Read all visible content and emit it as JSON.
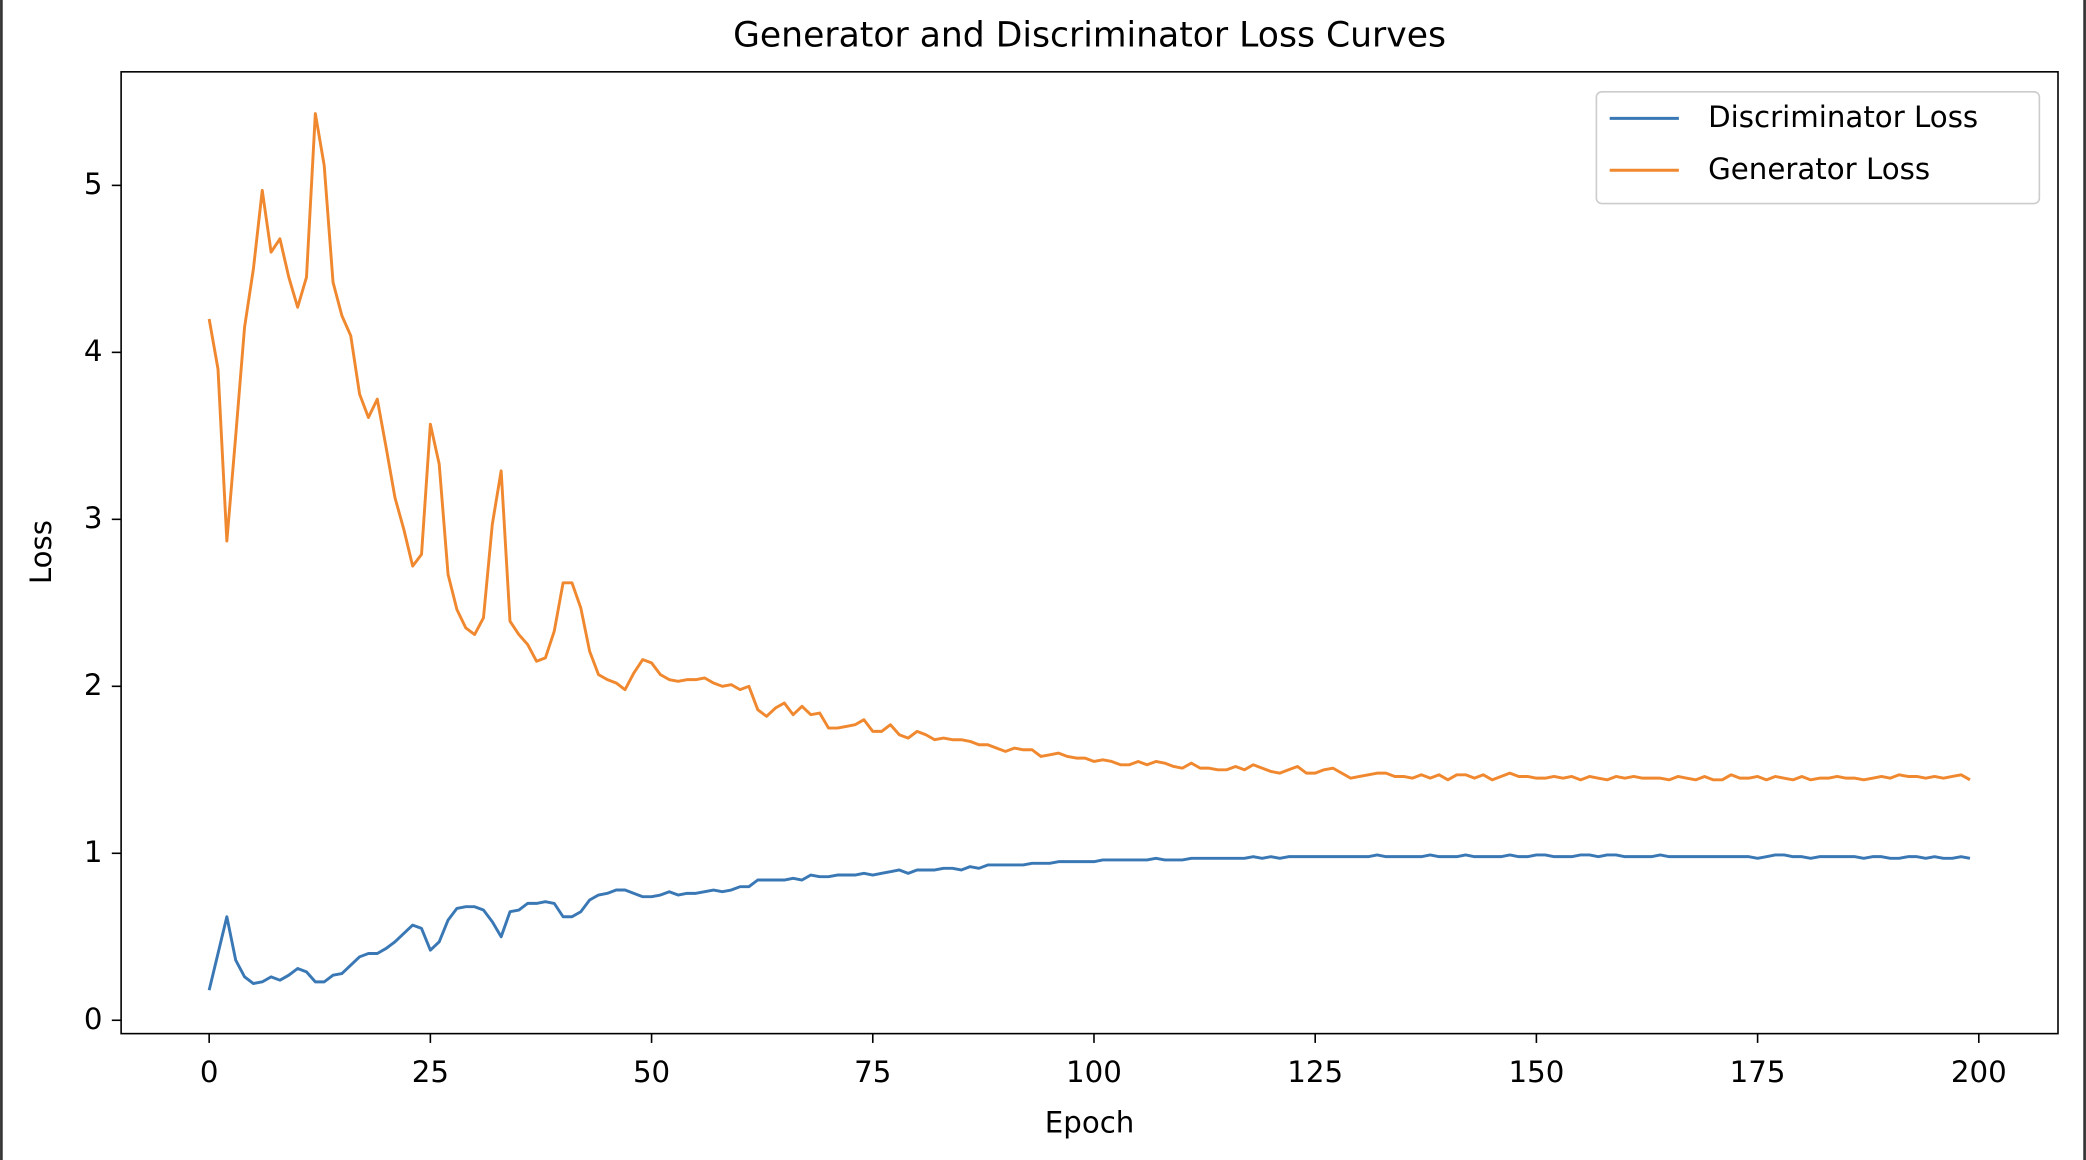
{
  "chart_data": {
    "type": "line",
    "title": "Generator and Discriminator Loss Curves",
    "x_label": "Epoch",
    "y_label": "Loss",
    "x": [
      0,
      1,
      2,
      3,
      4,
      5,
      6,
      7,
      8,
      9,
      10,
      11,
      12,
      13,
      14,
      15,
      16,
      17,
      18,
      19,
      20,
      21,
      22,
      23,
      24,
      25,
      26,
      27,
      28,
      29,
      30,
      31,
      32,
      33,
      34,
      35,
      36,
      37,
      38,
      39,
      40,
      41,
      42,
      43,
      44,
      45,
      46,
      47,
      48,
      49,
      50,
      51,
      52,
      53,
      54,
      55,
      56,
      57,
      58,
      59,
      60,
      61,
      62,
      63,
      64,
      65,
      66,
      67,
      68,
      69,
      70,
      71,
      72,
      73,
      74,
      75,
      76,
      77,
      78,
      79,
      80,
      81,
      82,
      83,
      84,
      85,
      86,
      87,
      88,
      89,
      90,
      91,
      92,
      93,
      94,
      95,
      96,
      97,
      98,
      99,
      100,
      101,
      102,
      103,
      104,
      105,
      106,
      107,
      108,
      109,
      110,
      111,
      112,
      113,
      114,
      115,
      116,
      117,
      118,
      119,
      120,
      121,
      122,
      123,
      124,
      125,
      126,
      127,
      128,
      129,
      130,
      131,
      132,
      133,
      134,
      135,
      136,
      137,
      138,
      139,
      140,
      141,
      142,
      143,
      144,
      145,
      146,
      147,
      148,
      149,
      150,
      151,
      152,
      153,
      154,
      155,
      156,
      157,
      158,
      159,
      160,
      161,
      162,
      163,
      164,
      165,
      166,
      167,
      168,
      169,
      170,
      171,
      172,
      173,
      174,
      175,
      176,
      177,
      178,
      179,
      180,
      181,
      182,
      183,
      184,
      185,
      186,
      187,
      188,
      189,
      190,
      191,
      192,
      193,
      194,
      195,
      196,
      197,
      198,
      199
    ],
    "series": [
      {
        "name": "Discriminator Loss",
        "color": "#3a78b5",
        "values": [
          0.18,
          0.4,
          0.62,
          0.36,
          0.26,
          0.22,
          0.23,
          0.26,
          0.24,
          0.27,
          0.31,
          0.29,
          0.23,
          0.23,
          0.27,
          0.28,
          0.33,
          0.38,
          0.4,
          0.4,
          0.43,
          0.47,
          0.52,
          0.57,
          0.55,
          0.42,
          0.47,
          0.6,
          0.67,
          0.68,
          0.68,
          0.66,
          0.59,
          0.5,
          0.65,
          0.66,
          0.7,
          0.7,
          0.71,
          0.7,
          0.62,
          0.62,
          0.65,
          0.72,
          0.75,
          0.76,
          0.78,
          0.78,
          0.76,
          0.74,
          0.74,
          0.75,
          0.77,
          0.75,
          0.76,
          0.76,
          0.77,
          0.78,
          0.77,
          0.78,
          0.8,
          0.8,
          0.84,
          0.84,
          0.84,
          0.84,
          0.85,
          0.84,
          0.87,
          0.86,
          0.86,
          0.87,
          0.87,
          0.87,
          0.88,
          0.87,
          0.88,
          0.89,
          0.9,
          0.88,
          0.9,
          0.9,
          0.9,
          0.91,
          0.91,
          0.9,
          0.92,
          0.91,
          0.93,
          0.93,
          0.93,
          0.93,
          0.93,
          0.94,
          0.94,
          0.94,
          0.95,
          0.95,
          0.95,
          0.95,
          0.95,
          0.96,
          0.96,
          0.96,
          0.96,
          0.96,
          0.96,
          0.97,
          0.96,
          0.96,
          0.96,
          0.97,
          0.97,
          0.97,
          0.97,
          0.97,
          0.97,
          0.97,
          0.98,
          0.97,
          0.98,
          0.97,
          0.98,
          0.98,
          0.98,
          0.98,
          0.98,
          0.98,
          0.98,
          0.98,
          0.98,
          0.98,
          0.99,
          0.98,
          0.98,
          0.98,
          0.98,
          0.98,
          0.99,
          0.98,
          0.98,
          0.98,
          0.99,
          0.98,
          0.98,
          0.98,
          0.98,
          0.99,
          0.98,
          0.98,
          0.99,
          0.99,
          0.98,
          0.98,
          0.98,
          0.99,
          0.99,
          0.98,
          0.99,
          0.99,
          0.98,
          0.98,
          0.98,
          0.98,
          0.99,
          0.98,
          0.98,
          0.98,
          0.98,
          0.98,
          0.98,
          0.98,
          0.98,
          0.98,
          0.98,
          0.97,
          0.98,
          0.99,
          0.99,
          0.98,
          0.98,
          0.97,
          0.98,
          0.98,
          0.98,
          0.98,
          0.98,
          0.97,
          0.98,
          0.98,
          0.97,
          0.97,
          0.98,
          0.98,
          0.97,
          0.98,
          0.97,
          0.97,
          0.98,
          0.97
        ]
      },
      {
        "name": "Generator Loss",
        "color": "#f0882f",
        "values": [
          4.2,
          3.9,
          2.87,
          3.5,
          4.15,
          4.5,
          4.97,
          4.6,
          4.68,
          4.45,
          4.27,
          4.45,
          5.43,
          5.12,
          4.42,
          4.22,
          4.1,
          3.75,
          3.61,
          3.72,
          3.43,
          3.13,
          2.94,
          2.72,
          2.79,
          3.57,
          3.33,
          2.67,
          2.46,
          2.35,
          2.31,
          2.41,
          2.97,
          3.29,
          2.39,
          2.31,
          2.25,
          2.15,
          2.17,
          2.33,
          2.62,
          2.62,
          2.47,
          2.21,
          2.07,
          2.04,
          2.02,
          1.98,
          2.08,
          2.16,
          2.14,
          2.07,
          2.04,
          2.03,
          2.04,
          2.04,
          2.05,
          2.02,
          2.0,
          2.01,
          1.98,
          2.0,
          1.86,
          1.82,
          1.87,
          1.9,
          1.83,
          1.88,
          1.83,
          1.84,
          1.75,
          1.75,
          1.76,
          1.77,
          1.8,
          1.73,
          1.73,
          1.77,
          1.71,
          1.69,
          1.73,
          1.71,
          1.68,
          1.69,
          1.68,
          1.68,
          1.67,
          1.65,
          1.65,
          1.63,
          1.61,
          1.63,
          1.62,
          1.62,
          1.58,
          1.59,
          1.6,
          1.58,
          1.57,
          1.57,
          1.55,
          1.56,
          1.55,
          1.53,
          1.53,
          1.55,
          1.53,
          1.55,
          1.54,
          1.52,
          1.51,
          1.54,
          1.51,
          1.51,
          1.5,
          1.5,
          1.52,
          1.5,
          1.53,
          1.51,
          1.49,
          1.48,
          1.5,
          1.52,
          1.48,
          1.48,
          1.5,
          1.51,
          1.48,
          1.45,
          1.46,
          1.47,
          1.48,
          1.48,
          1.46,
          1.46,
          1.45,
          1.47,
          1.45,
          1.47,
          1.44,
          1.47,
          1.47,
          1.45,
          1.47,
          1.44,
          1.46,
          1.48,
          1.46,
          1.46,
          1.45,
          1.45,
          1.46,
          1.45,
          1.46,
          1.44,
          1.46,
          1.45,
          1.44,
          1.46,
          1.45,
          1.46,
          1.45,
          1.45,
          1.45,
          1.44,
          1.46,
          1.45,
          1.44,
          1.46,
          1.44,
          1.44,
          1.47,
          1.45,
          1.45,
          1.46,
          1.44,
          1.46,
          1.45,
          1.44,
          1.46,
          1.44,
          1.45,
          1.45,
          1.46,
          1.45,
          1.45,
          1.44,
          1.45,
          1.46,
          1.45,
          1.47,
          1.46,
          1.46,
          1.45,
          1.46,
          1.45,
          1.46,
          1.47,
          1.44
        ]
      }
    ],
    "xlim": [
      -9.95,
      208.95
    ],
    "ylim": [
      -0.08,
      5.68
    ],
    "xticks": [
      0,
      25,
      50,
      75,
      100,
      125,
      150,
      175,
      200
    ],
    "yticks": [
      0,
      1,
      2,
      3,
      4,
      5
    ],
    "legend": "upper right"
  }
}
